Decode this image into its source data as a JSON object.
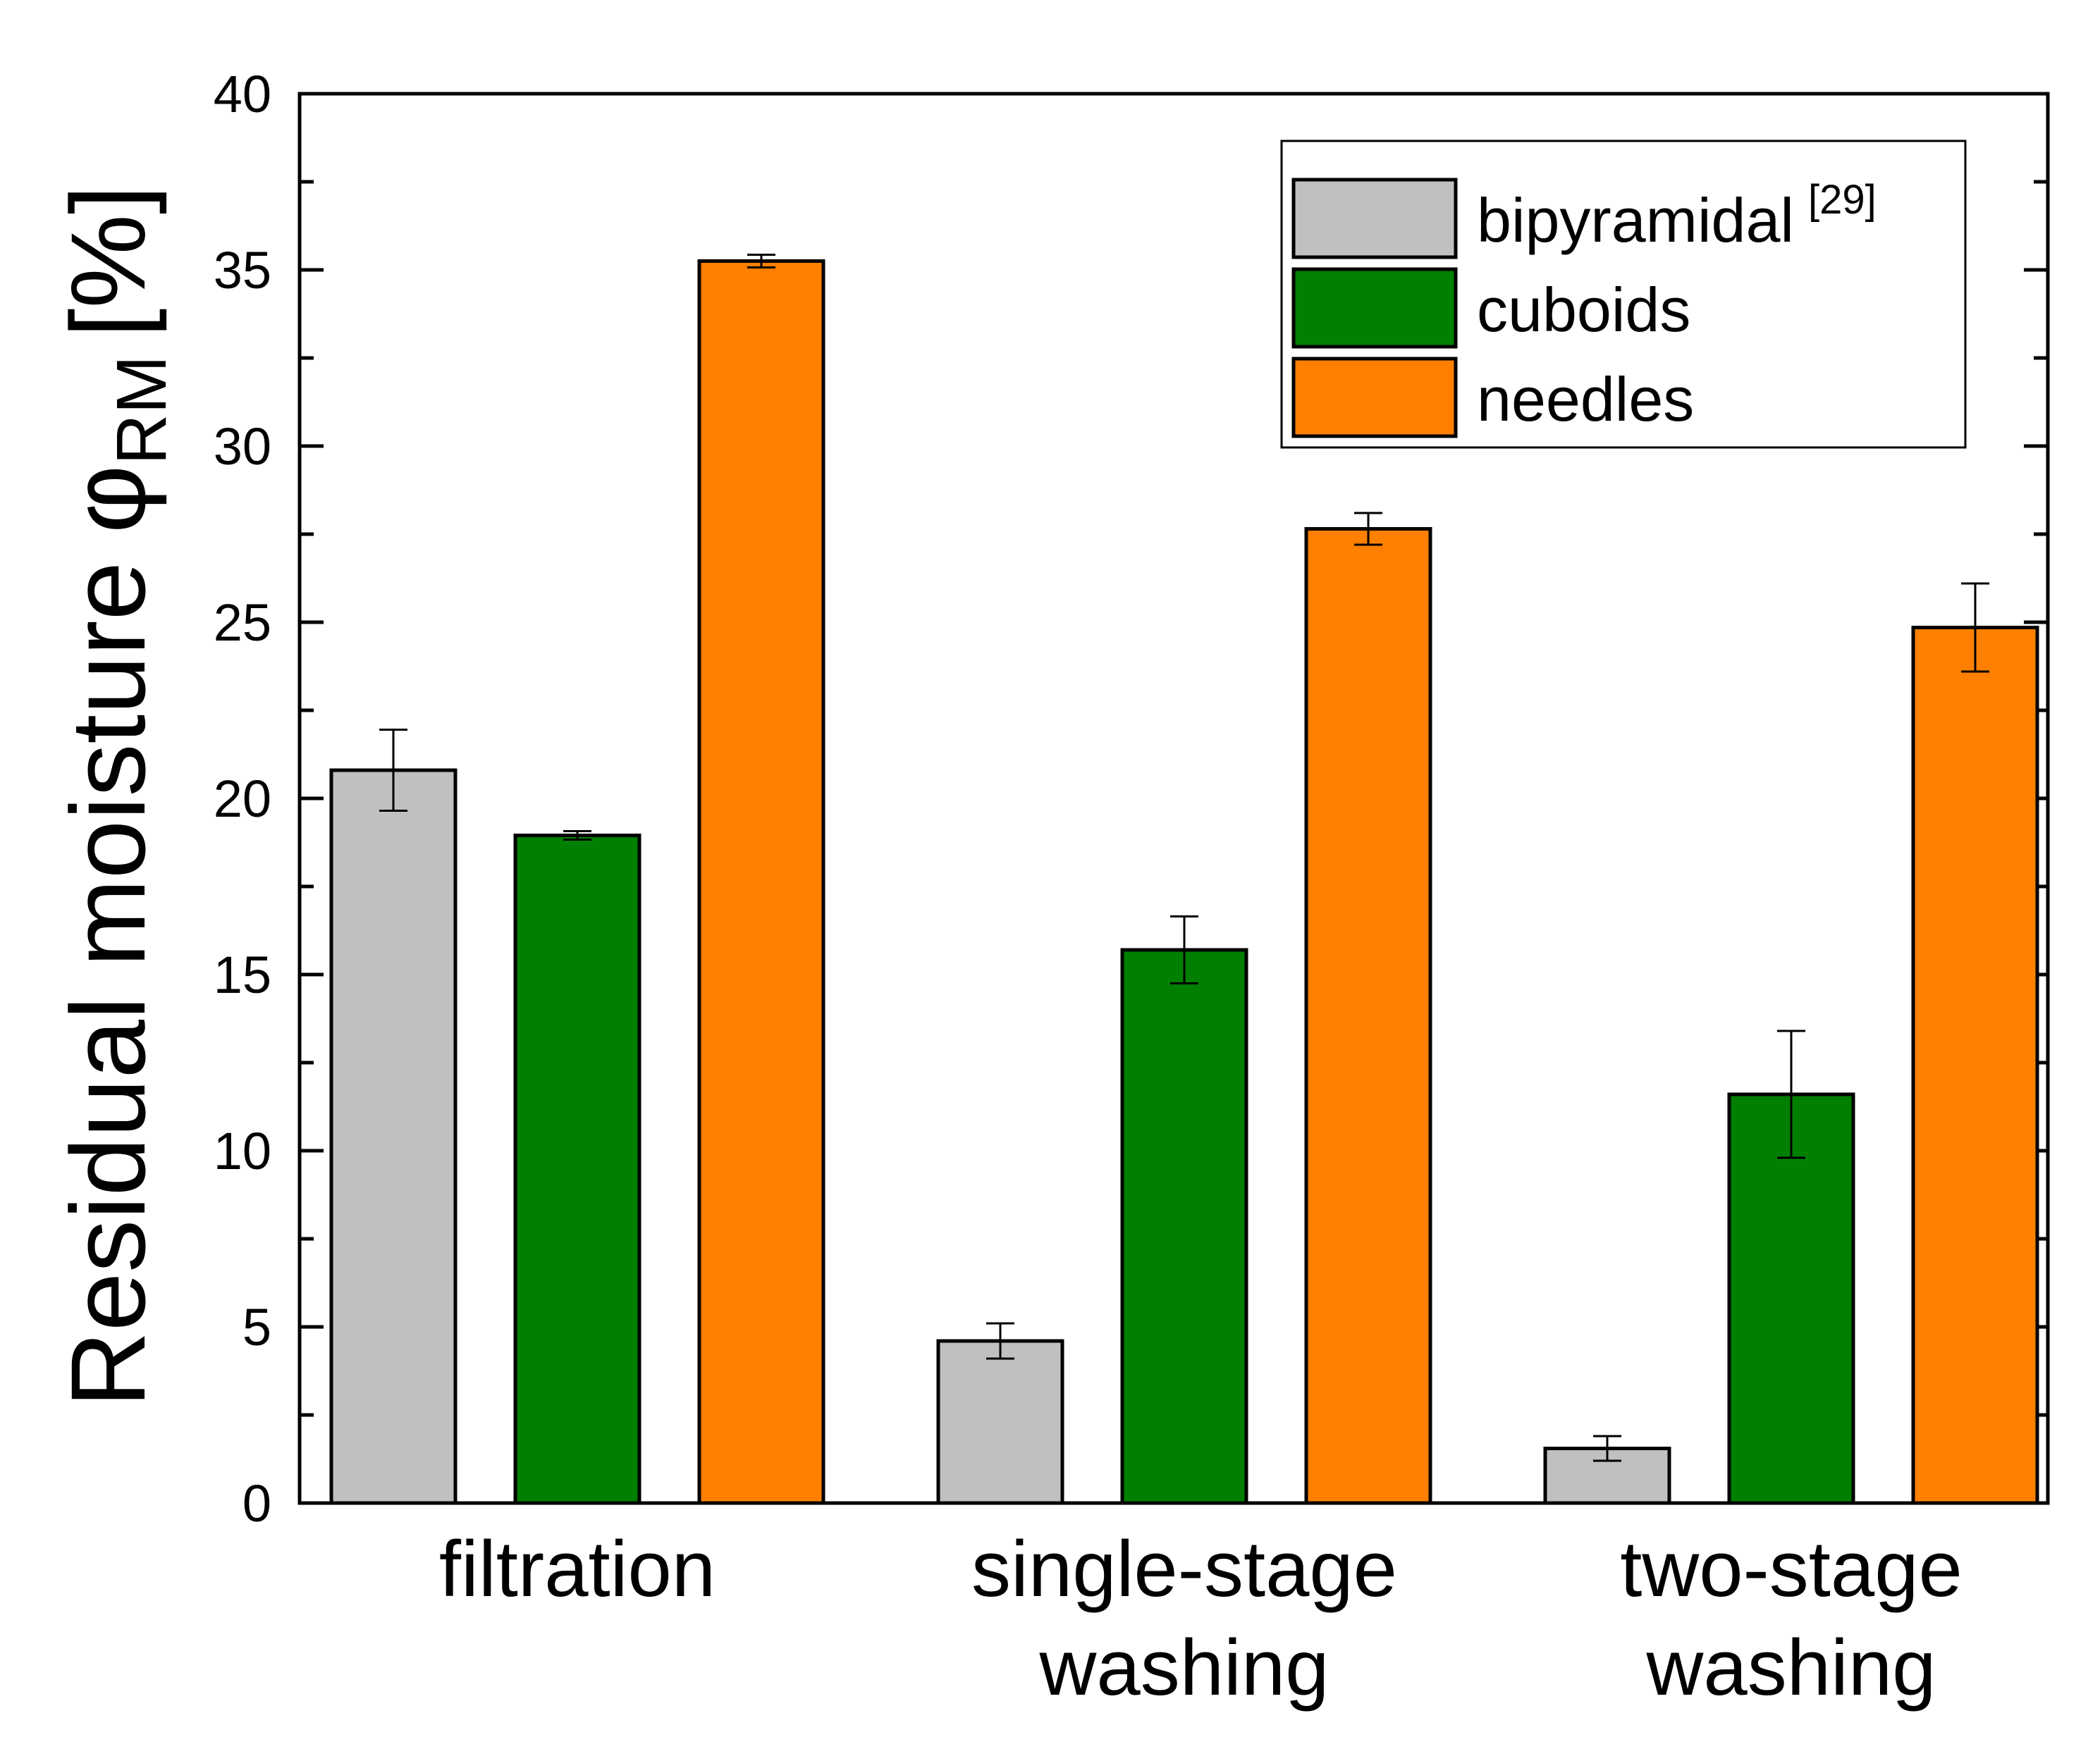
{
  "chart_data": {
    "type": "bar",
    "title": "",
    "xlabel": "",
    "ylabel": {
      "main": "Residual moisture",
      "symbol": "φ",
      "subscript": "RM",
      "unit": "[%]"
    },
    "ylim": [
      0,
      40
    ],
    "yticks": [
      "0",
      "5",
      "10",
      "15",
      "20",
      "25",
      "30",
      "35",
      "40"
    ],
    "categories": [
      [
        "filtration"
      ],
      [
        "single-stage",
        "washing"
      ],
      [
        "two-stage",
        "washing"
      ]
    ],
    "series": [
      {
        "name": "bipyramidal",
        "superscript": "[29]",
        "color": "#c0c0c0",
        "values": [
          20.8,
          4.6,
          1.55
        ],
        "errors": [
          1.15,
          0.5,
          0.35
        ]
      },
      {
        "name": "cuboids",
        "superscript": "",
        "color": "#007f00",
        "values": [
          18.95,
          15.7,
          11.6
        ],
        "errors": [
          0.12,
          0.95,
          1.8
        ]
      },
      {
        "name": "needles",
        "superscript": "",
        "color": "#ff8000",
        "values": [
          35.25,
          27.65,
          24.85
        ],
        "errors": [
          0.18,
          0.45,
          1.25
        ]
      }
    ],
    "legend_position": "top-right",
    "grid": false
  }
}
